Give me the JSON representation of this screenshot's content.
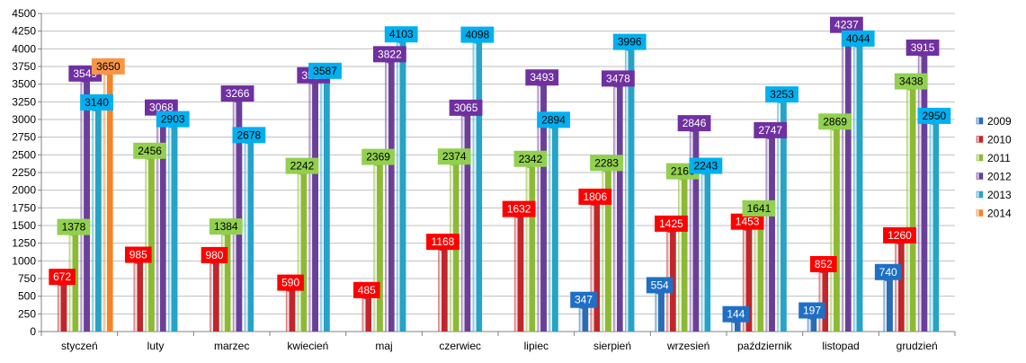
{
  "chart_data": {
    "type": "bar",
    "categories": [
      "styczeń",
      "luty",
      "marzec",
      "kwiecień",
      "maj",
      "czerwiec",
      "lipiec",
      "sierpień",
      "wrzesień",
      "październik",
      "listopad",
      "grudzień"
    ],
    "series": [
      {
        "name": "2009",
        "color": "#2a6db5",
        "label_bg": "#1f6fc5",
        "label_fg": "#ffffff",
        "values": [
          null,
          null,
          null,
          null,
          null,
          null,
          null,
          347,
          554,
          144,
          197,
          740
        ]
      },
      {
        "name": "2010",
        "color": "#c0262b",
        "label_bg": "#ff0000",
        "label_fg": "#ffffff",
        "values": [
          672,
          985,
          980,
          590,
          485,
          1168,
          1632,
          1806,
          1425,
          1453,
          852,
          1260
        ]
      },
      {
        "name": "2011",
        "color": "#8cba34",
        "label_bg": "#92d050",
        "label_fg": "#000000",
        "values": [
          1378,
          2456,
          1384,
          2242,
          2369,
          2374,
          2342,
          2283,
          2166,
          1641,
          2869,
          3438
        ]
      },
      {
        "name": "2012",
        "color": "#6a3f98",
        "label_bg": "#7030a0",
        "label_fg": "#ffffff",
        "values": [
          3549,
          3068,
          3266,
          3524,
          3822,
          3065,
          3493,
          3478,
          2846,
          2747,
          4237,
          3915
        ]
      },
      {
        "name": "2013",
        "color": "#26a3c6",
        "label_bg": "#00b0f0",
        "label_fg": "#000000",
        "values": [
          3140,
          2903,
          2678,
          3587,
          4103,
          4098,
          2894,
          3996,
          2243,
          3253,
          4044,
          2950
        ]
      },
      {
        "name": "2014",
        "color": "#f58424",
        "label_bg": "#f79646",
        "label_fg": "#000000",
        "values": [
          3650,
          null,
          null,
          null,
          null,
          null,
          null,
          null,
          null,
          null,
          null,
          null
        ]
      }
    ],
    "ylim": [
      0,
      4500
    ],
    "ytick_step": 250,
    "yticks": [
      "0",
      "250",
      "500",
      "750",
      "1000",
      "1250",
      "1500",
      "1750",
      "2000",
      "2250",
      "2500",
      "2750",
      "3000",
      "3250",
      "3500",
      "3750",
      "4000",
      "4250",
      "4500"
    ],
    "grid": "horizontal",
    "legend_position": "right",
    "title": "",
    "xlabel": "",
    "ylabel": ""
  }
}
